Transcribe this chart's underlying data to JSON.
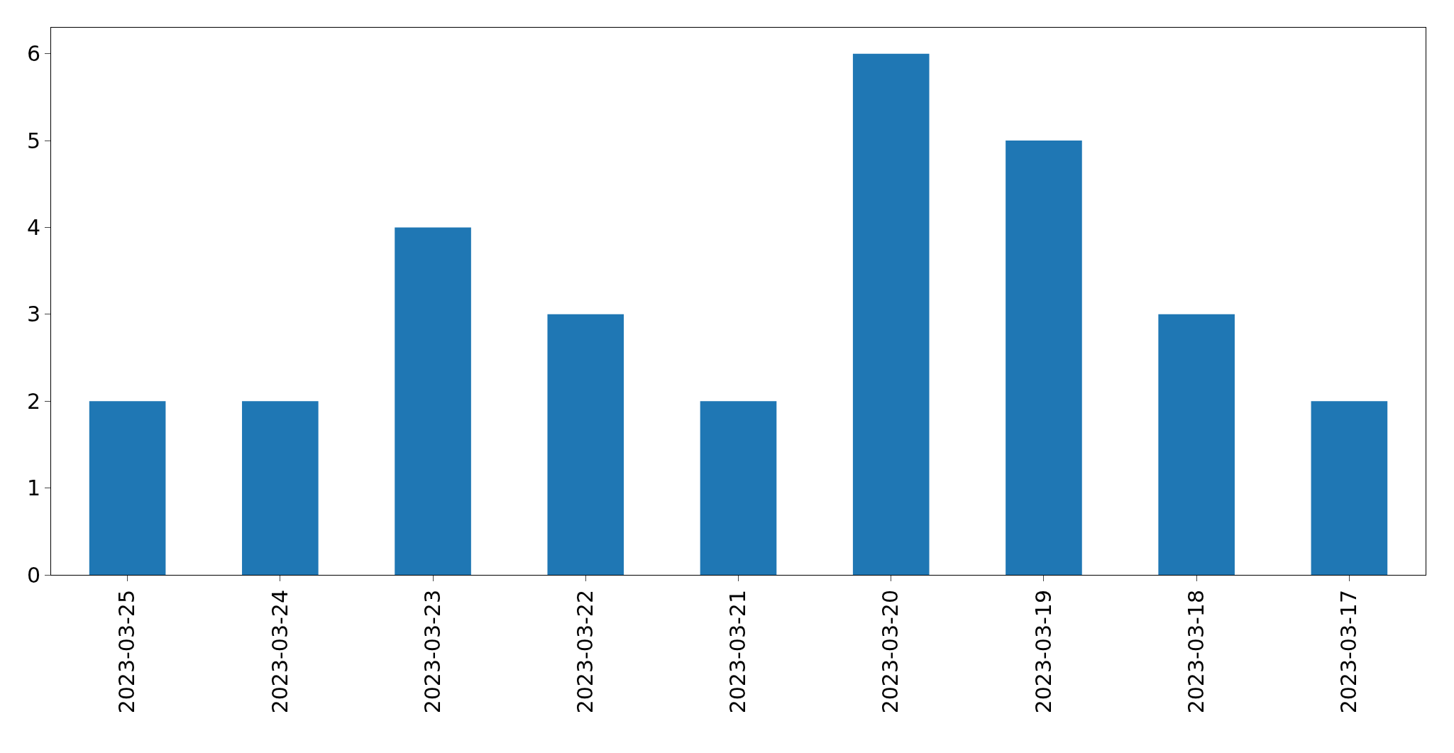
{
  "chart_data": {
    "type": "bar",
    "categories": [
      "2023-03-25",
      "2023-03-24",
      "2023-03-23",
      "2023-03-22",
      "2023-03-21",
      "2023-03-20",
      "2023-03-19",
      "2023-03-18",
      "2023-03-17"
    ],
    "values": [
      2,
      2,
      4,
      3,
      2,
      6,
      5,
      3,
      2
    ],
    "color": "#1f77b4",
    "ylim": [
      0,
      6.3
    ],
    "yticks": [
      0,
      1,
      2,
      3,
      4,
      5,
      6
    ],
    "legend": false
  }
}
